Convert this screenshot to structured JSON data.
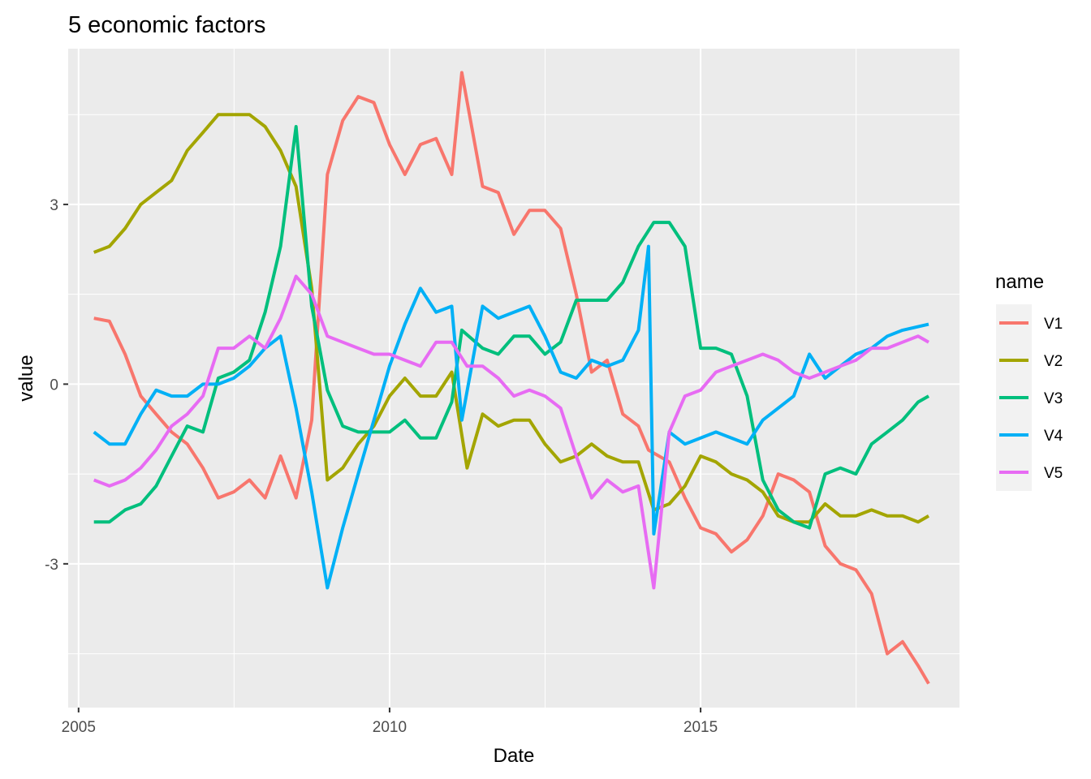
{
  "chart_data": {
    "type": "line",
    "title": "5 economic factors",
    "xlabel": "Date",
    "ylabel": "value",
    "x_axis_type": "date",
    "xlim": [
      "2004-11-01",
      "2019-03-01"
    ],
    "ylim": [
      -5.4,
      5.6
    ],
    "x_ticks": [
      {
        "date": "2005-01-01",
        "label": "2005"
      },
      {
        "date": "2010-01-01",
        "label": "2010"
      },
      {
        "date": "2015-01-01",
        "label": "2015"
      }
    ],
    "y_ticks": [
      {
        "value": -3,
        "label": "-3"
      },
      {
        "value": 0,
        "label": "0"
      },
      {
        "value": 3,
        "label": "3"
      }
    ],
    "grid": true,
    "legend_title": "name",
    "legend_position": "right",
    "series": [
      {
        "name": "V1",
        "color": "#F8766D",
        "points": [
          [
            "2005-04-01",
            1.1
          ],
          [
            "2005-07-01",
            1.05
          ],
          [
            "2005-10-01",
            0.5
          ],
          [
            "2006-01-01",
            -0.2
          ],
          [
            "2006-04-01",
            -0.5
          ],
          [
            "2006-07-01",
            -0.8
          ],
          [
            "2006-10-01",
            -1.0
          ],
          [
            "2007-01-01",
            -1.4
          ],
          [
            "2007-04-01",
            -1.9
          ],
          [
            "2007-07-01",
            -1.8
          ],
          [
            "2007-10-01",
            -1.6
          ],
          [
            "2008-01-01",
            -1.9
          ],
          [
            "2008-04-01",
            -1.2
          ],
          [
            "2008-07-01",
            -1.9
          ],
          [
            "2008-10-01",
            -0.6
          ],
          [
            "2009-01-01",
            3.5
          ],
          [
            "2009-04-01",
            4.4
          ],
          [
            "2009-07-01",
            4.8
          ],
          [
            "2009-10-01",
            4.7
          ],
          [
            "2010-01-01",
            4.0
          ],
          [
            "2010-04-01",
            3.5
          ],
          [
            "2010-07-01",
            4.0
          ],
          [
            "2010-10-01",
            4.1
          ],
          [
            "2011-01-01",
            3.5
          ],
          [
            "2011-03-01",
            5.2
          ],
          [
            "2011-07-01",
            3.3
          ],
          [
            "2011-10-01",
            3.2
          ],
          [
            "2012-01-01",
            2.5
          ],
          [
            "2012-04-01",
            2.9
          ],
          [
            "2012-07-01",
            2.9
          ],
          [
            "2012-10-01",
            2.6
          ],
          [
            "2013-01-01",
            1.5
          ],
          [
            "2013-04-01",
            0.2
          ],
          [
            "2013-07-01",
            0.4
          ],
          [
            "2013-10-01",
            -0.5
          ],
          [
            "2014-01-01",
            -0.7
          ],
          [
            "2014-03-01",
            -1.1
          ],
          [
            "2014-07-01",
            -1.3
          ],
          [
            "2014-10-01",
            -1.9
          ],
          [
            "2015-01-01",
            -2.4
          ],
          [
            "2015-04-01",
            -2.5
          ],
          [
            "2015-07-01",
            -2.8
          ],
          [
            "2015-10-01",
            -2.6
          ],
          [
            "2016-01-01",
            -2.2
          ],
          [
            "2016-04-01",
            -1.5
          ],
          [
            "2016-07-01",
            -1.6
          ],
          [
            "2016-10-01",
            -1.8
          ],
          [
            "2017-01-01",
            -2.7
          ],
          [
            "2017-04-01",
            -3.0
          ],
          [
            "2017-07-01",
            -3.1
          ],
          [
            "2017-10-01",
            -3.5
          ],
          [
            "2018-01-01",
            -4.5
          ],
          [
            "2018-04-01",
            -4.3
          ],
          [
            "2018-07-01",
            -4.7
          ],
          [
            "2018-09-01",
            -5.0
          ]
        ]
      },
      {
        "name": "V2",
        "color": "#A3A500",
        "points": [
          [
            "2005-04-01",
            2.2
          ],
          [
            "2005-07-01",
            2.3
          ],
          [
            "2005-10-01",
            2.6
          ],
          [
            "2006-01-01",
            3.0
          ],
          [
            "2006-04-01",
            3.2
          ],
          [
            "2006-07-01",
            3.4
          ],
          [
            "2006-10-01",
            3.9
          ],
          [
            "2007-01-01",
            4.2
          ],
          [
            "2007-04-01",
            4.5
          ],
          [
            "2007-07-01",
            4.5
          ],
          [
            "2007-10-01",
            4.5
          ],
          [
            "2008-01-01",
            4.3
          ],
          [
            "2008-04-01",
            3.9
          ],
          [
            "2008-07-01",
            3.3
          ],
          [
            "2008-10-01",
            1.6
          ],
          [
            "2009-01-01",
            -1.6
          ],
          [
            "2009-04-01",
            -1.4
          ],
          [
            "2009-07-01",
            -1.0
          ],
          [
            "2009-10-01",
            -0.7
          ],
          [
            "2010-01-01",
            -0.2
          ],
          [
            "2010-04-01",
            0.1
          ],
          [
            "2010-07-01",
            -0.2
          ],
          [
            "2010-10-01",
            -0.2
          ],
          [
            "2011-01-01",
            0.2
          ],
          [
            "2011-04-01",
            -1.4
          ],
          [
            "2011-07-01",
            -0.5
          ],
          [
            "2011-10-01",
            -0.7
          ],
          [
            "2012-01-01",
            -0.6
          ],
          [
            "2012-04-01",
            -0.6
          ],
          [
            "2012-07-01",
            -1.0
          ],
          [
            "2012-10-01",
            -1.3
          ],
          [
            "2013-01-01",
            -1.2
          ],
          [
            "2013-04-01",
            -1.0
          ],
          [
            "2013-07-01",
            -1.2
          ],
          [
            "2013-10-01",
            -1.3
          ],
          [
            "2014-01-01",
            -1.3
          ],
          [
            "2014-04-01",
            -2.1
          ],
          [
            "2014-07-01",
            -2.0
          ],
          [
            "2014-10-01",
            -1.7
          ],
          [
            "2015-01-01",
            -1.2
          ],
          [
            "2015-04-01",
            -1.3
          ],
          [
            "2015-07-01",
            -1.5
          ],
          [
            "2015-10-01",
            -1.6
          ],
          [
            "2016-01-01",
            -1.8
          ],
          [
            "2016-04-01",
            -2.2
          ],
          [
            "2016-07-01",
            -2.3
          ],
          [
            "2016-10-01",
            -2.3
          ],
          [
            "2017-01-01",
            -2.0
          ],
          [
            "2017-04-01",
            -2.2
          ],
          [
            "2017-07-01",
            -2.2
          ],
          [
            "2017-10-01",
            -2.1
          ],
          [
            "2018-01-01",
            -2.2
          ],
          [
            "2018-04-01",
            -2.2
          ],
          [
            "2018-07-01",
            -2.3
          ],
          [
            "2018-09-01",
            -2.2
          ]
        ]
      },
      {
        "name": "V3",
        "color": "#00BF7D",
        "points": [
          [
            "2005-04-01",
            -2.3
          ],
          [
            "2005-07-01",
            -2.3
          ],
          [
            "2005-10-01",
            -2.1
          ],
          [
            "2006-01-01",
            -2.0
          ],
          [
            "2006-04-01",
            -1.7
          ],
          [
            "2006-07-01",
            -1.2
          ],
          [
            "2006-10-01",
            -0.7
          ],
          [
            "2007-01-01",
            -0.8
          ],
          [
            "2007-04-01",
            0.1
          ],
          [
            "2007-07-01",
            0.2
          ],
          [
            "2007-10-01",
            0.4
          ],
          [
            "2008-01-01",
            1.2
          ],
          [
            "2008-04-01",
            2.3
          ],
          [
            "2008-07-01",
            4.3
          ],
          [
            "2008-10-01",
            1.3
          ],
          [
            "2009-01-01",
            -0.1
          ],
          [
            "2009-04-01",
            -0.7
          ],
          [
            "2009-07-01",
            -0.8
          ],
          [
            "2009-10-01",
            -0.8
          ],
          [
            "2010-01-01",
            -0.8
          ],
          [
            "2010-04-01",
            -0.6
          ],
          [
            "2010-07-01",
            -0.9
          ],
          [
            "2010-10-01",
            -0.9
          ],
          [
            "2011-01-01",
            -0.3
          ],
          [
            "2011-03-01",
            0.9
          ],
          [
            "2011-07-01",
            0.6
          ],
          [
            "2011-10-01",
            0.5
          ],
          [
            "2012-01-01",
            0.8
          ],
          [
            "2012-04-01",
            0.8
          ],
          [
            "2012-07-01",
            0.5
          ],
          [
            "2012-10-01",
            0.7
          ],
          [
            "2013-01-01",
            1.4
          ],
          [
            "2013-04-01",
            1.4
          ],
          [
            "2013-07-01",
            1.4
          ],
          [
            "2013-10-01",
            1.7
          ],
          [
            "2014-01-01",
            2.3
          ],
          [
            "2014-04-01",
            2.7
          ],
          [
            "2014-07-01",
            2.7
          ],
          [
            "2014-10-01",
            2.3
          ],
          [
            "2015-01-01",
            0.6
          ],
          [
            "2015-04-01",
            0.6
          ],
          [
            "2015-07-01",
            0.5
          ],
          [
            "2015-10-01",
            -0.2
          ],
          [
            "2016-01-01",
            -1.6
          ],
          [
            "2016-04-01",
            -2.1
          ],
          [
            "2016-07-01",
            -2.3
          ],
          [
            "2016-10-01",
            -2.4
          ],
          [
            "2017-01-01",
            -1.5
          ],
          [
            "2017-04-01",
            -1.4
          ],
          [
            "2017-07-01",
            -1.5
          ],
          [
            "2017-10-01",
            -1.0
          ],
          [
            "2018-01-01",
            -0.8
          ],
          [
            "2018-04-01",
            -0.6
          ],
          [
            "2018-07-01",
            -0.3
          ],
          [
            "2018-09-01",
            -0.2
          ]
        ]
      },
      {
        "name": "V4",
        "color": "#00B0F6",
        "points": [
          [
            "2005-04-01",
            -0.8
          ],
          [
            "2005-07-01",
            -1.0
          ],
          [
            "2005-10-01",
            -1.0
          ],
          [
            "2006-01-01",
            -0.5
          ],
          [
            "2006-04-01",
            -0.1
          ],
          [
            "2006-07-01",
            -0.2
          ],
          [
            "2006-10-01",
            -0.2
          ],
          [
            "2007-01-01",
            0.0
          ],
          [
            "2007-04-01",
            0.0
          ],
          [
            "2007-07-01",
            0.1
          ],
          [
            "2007-10-01",
            0.3
          ],
          [
            "2008-01-01",
            0.6
          ],
          [
            "2008-04-01",
            0.8
          ],
          [
            "2008-07-01",
            -0.4
          ],
          [
            "2008-10-01",
            -1.8
          ],
          [
            "2009-01-01",
            -3.4
          ],
          [
            "2009-04-01",
            -2.4
          ],
          [
            "2009-07-01",
            -1.5
          ],
          [
            "2009-10-01",
            -0.6
          ],
          [
            "2010-01-01",
            0.3
          ],
          [
            "2010-04-01",
            1.0
          ],
          [
            "2010-07-01",
            1.6
          ],
          [
            "2010-10-01",
            1.2
          ],
          [
            "2011-01-01",
            1.3
          ],
          [
            "2011-03-01",
            -0.6
          ],
          [
            "2011-07-01",
            1.3
          ],
          [
            "2011-10-01",
            1.1
          ],
          [
            "2012-01-01",
            1.2
          ],
          [
            "2012-04-01",
            1.3
          ],
          [
            "2012-07-01",
            0.8
          ],
          [
            "2012-10-01",
            0.2
          ],
          [
            "2013-01-01",
            0.1
          ],
          [
            "2013-04-01",
            0.4
          ],
          [
            "2013-07-01",
            0.3
          ],
          [
            "2013-10-01",
            0.4
          ],
          [
            "2014-01-01",
            0.9
          ],
          [
            "2014-03-01",
            2.3
          ],
          [
            "2014-04-01",
            -2.5
          ],
          [
            "2014-07-01",
            -0.8
          ],
          [
            "2014-10-01",
            -1.0
          ],
          [
            "2015-01-01",
            -0.9
          ],
          [
            "2015-04-01",
            -0.8
          ],
          [
            "2015-07-01",
            -0.9
          ],
          [
            "2015-10-01",
            -1.0
          ],
          [
            "2016-01-01",
            -0.6
          ],
          [
            "2016-04-01",
            -0.4
          ],
          [
            "2016-07-01",
            -0.2
          ],
          [
            "2016-10-01",
            0.5
          ],
          [
            "2017-01-01",
            0.1
          ],
          [
            "2017-04-01",
            0.3
          ],
          [
            "2017-07-01",
            0.5
          ],
          [
            "2017-10-01",
            0.6
          ],
          [
            "2018-01-01",
            0.8
          ],
          [
            "2018-04-01",
            0.9
          ],
          [
            "2018-09-01",
            1.0
          ]
        ]
      },
      {
        "name": "V5",
        "color": "#E76BF3",
        "points": [
          [
            "2005-04-01",
            -1.6
          ],
          [
            "2005-07-01",
            -1.7
          ],
          [
            "2005-10-01",
            -1.6
          ],
          [
            "2006-01-01",
            -1.4
          ],
          [
            "2006-04-01",
            -1.1
          ],
          [
            "2006-07-01",
            -0.7
          ],
          [
            "2006-10-01",
            -0.5
          ],
          [
            "2007-01-01",
            -0.2
          ],
          [
            "2007-04-01",
            0.6
          ],
          [
            "2007-07-01",
            0.6
          ],
          [
            "2007-10-01",
            0.8
          ],
          [
            "2008-01-01",
            0.6
          ],
          [
            "2008-04-01",
            1.1
          ],
          [
            "2008-07-01",
            1.8
          ],
          [
            "2008-10-01",
            1.5
          ],
          [
            "2009-01-01",
            0.8
          ],
          [
            "2009-04-01",
            0.7
          ],
          [
            "2009-07-01",
            0.6
          ],
          [
            "2009-10-01",
            0.5
          ],
          [
            "2010-01-01",
            0.5
          ],
          [
            "2010-04-01",
            0.4
          ],
          [
            "2010-07-01",
            0.3
          ],
          [
            "2010-10-01",
            0.7
          ],
          [
            "2011-01-01",
            0.7
          ],
          [
            "2011-04-01",
            0.3
          ],
          [
            "2011-07-01",
            0.3
          ],
          [
            "2011-10-01",
            0.1
          ],
          [
            "2012-01-01",
            -0.2
          ],
          [
            "2012-04-01",
            -0.1
          ],
          [
            "2012-07-01",
            -0.2
          ],
          [
            "2012-10-01",
            -0.4
          ],
          [
            "2013-01-01",
            -1.2
          ],
          [
            "2013-04-01",
            -1.9
          ],
          [
            "2013-07-01",
            -1.6
          ],
          [
            "2013-10-01",
            -1.8
          ],
          [
            "2014-01-01",
            -1.7
          ],
          [
            "2014-04-01",
            -3.4
          ],
          [
            "2014-07-01",
            -0.8
          ],
          [
            "2014-10-01",
            -0.2
          ],
          [
            "2015-01-01",
            -0.1
          ],
          [
            "2015-04-01",
            0.2
          ],
          [
            "2015-07-01",
            0.3
          ],
          [
            "2015-10-01",
            0.4
          ],
          [
            "2016-01-01",
            0.5
          ],
          [
            "2016-04-01",
            0.4
          ],
          [
            "2016-07-01",
            0.2
          ],
          [
            "2016-10-01",
            0.1
          ],
          [
            "2017-01-01",
            0.2
          ],
          [
            "2017-04-01",
            0.3
          ],
          [
            "2017-07-01",
            0.4
          ],
          [
            "2017-10-01",
            0.6
          ],
          [
            "2018-01-01",
            0.6
          ],
          [
            "2018-04-01",
            0.7
          ],
          [
            "2018-07-01",
            0.8
          ],
          [
            "2018-09-01",
            0.7
          ]
        ]
      }
    ]
  }
}
